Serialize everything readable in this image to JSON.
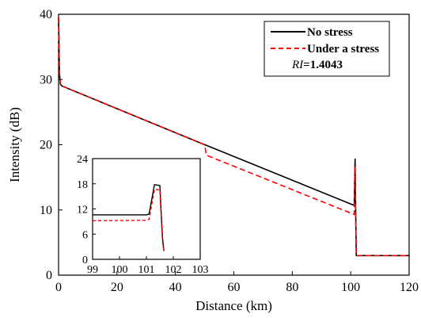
{
  "chart_data": [
    {
      "type": "line",
      "title": "",
      "xlabel": "Distance (km)",
      "ylabel": "Intensity (dB)",
      "xlim": [
        0,
        120
      ],
      "ylim": [
        0,
        40
      ],
      "xticks": [
        "0",
        "20",
        "40",
        "60",
        "80",
        "100",
        "120"
      ],
      "yticks": [
        "0",
        "10",
        "20",
        "30",
        "40"
      ],
      "legend_position": "top-right",
      "annotation": {
        "label": "RI",
        "value": "=1.4043"
      },
      "series": [
        {
          "name": "No stress",
          "color": "#000000",
          "style": "solid",
          "x": [
            0,
            0.3,
            0.6,
            1.2,
            50,
            50.6,
            101.2,
            101.5,
            101.7,
            101.9,
            102.2,
            120
          ],
          "y": [
            39.5,
            31,
            29.3,
            29.0,
            20.0,
            19.9,
            10.7,
            17.8,
            10.5,
            3.0,
            3.0,
            3.0
          ]
        },
        {
          "name": "Under a stress",
          "color": "#ff0000",
          "style": "dashed",
          "x": [
            0,
            0.3,
            0.6,
            1.2,
            50,
            50.6,
            101.2,
            101.5,
            101.7,
            101.9,
            102.2,
            120
          ],
          "y": [
            39.5,
            31,
            29.3,
            29.0,
            20.0,
            18.4,
            9.3,
            16.7,
            9.0,
            3.0,
            3.0,
            3.0
          ]
        }
      ]
    },
    {
      "type": "line",
      "title": "",
      "xlabel": "",
      "ylabel": "",
      "xlim": [
        99,
        103
      ],
      "ylim": [
        0,
        24
      ],
      "xticks": [
        "99",
        "100",
        "101",
        "102",
        "103"
      ],
      "yticks": [
        "0",
        "6",
        "12",
        "18",
        "24"
      ],
      "series": [
        {
          "color": "#000000",
          "style": "solid",
          "x": [
            99,
            101.0,
            101.1,
            101.3,
            101.5,
            101.55,
            101.6,
            101.65
          ],
          "y": [
            10.6,
            10.6,
            10.8,
            17.8,
            17.6,
            11,
            5,
            2
          ]
        },
        {
          "color": "#ff0000",
          "style": "dashed",
          "x": [
            99,
            101.0,
            101.1,
            101.3,
            101.5,
            101.55,
            101.6,
            101.65
          ],
          "y": [
            9.2,
            9.3,
            9.5,
            16.7,
            16.5,
            10,
            4,
            2
          ]
        }
      ]
    }
  ]
}
